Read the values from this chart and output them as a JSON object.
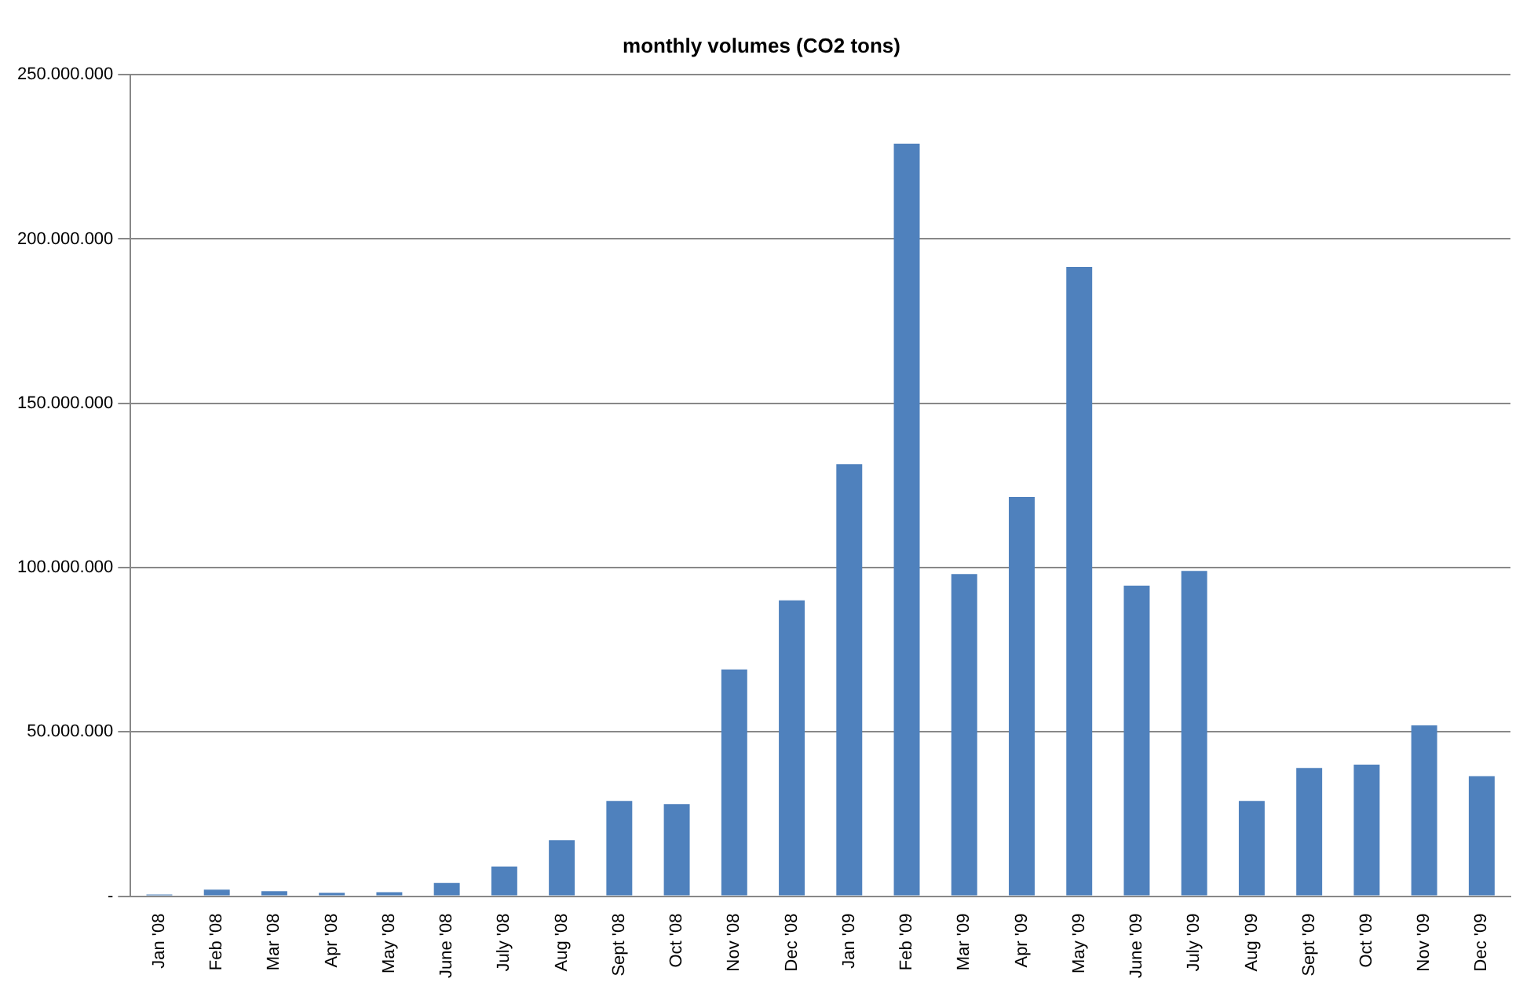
{
  "chart_data": {
    "type": "bar",
    "title": "monthly volumes (CO2 tons)",
    "categories": [
      "Jan '08",
      "Feb '08",
      "Mar '08",
      "Apr '08",
      "May '08",
      "June '08",
      "July '08",
      "Aug '08",
      "Sept '08",
      "Oct '08",
      "Nov '08",
      "Dec '08",
      "Jan '09",
      "Feb '09",
      "Mar '09",
      "Apr '09",
      "May '09",
      "June '09",
      "July '09",
      "Aug '09",
      "Sept '09",
      "Oct '09",
      "Nov '09",
      "Dec '09"
    ],
    "values": [
      500000,
      2000000,
      1500000,
      1000000,
      1200000,
      4000000,
      9000000,
      17000000,
      29000000,
      28000000,
      69000000,
      90000000,
      131500000,
      229000000,
      98000000,
      121500000,
      191500000,
      94500000,
      99000000,
      29000000,
      39000000,
      40000000,
      52000000,
      36500000
    ],
    "color": "#4f81bd",
    "ylim": [
      0,
      250000000
    ],
    "yticks": [
      {
        "value": 0,
        "label": "-"
      },
      {
        "value": 50000000,
        "label": "50.000.000"
      },
      {
        "value": 100000000,
        "label": "100.000.000"
      },
      {
        "value": 150000000,
        "label": "150.000.000"
      },
      {
        "value": 200000000,
        "label": "200.000.000"
      },
      {
        "value": 250000000,
        "label": "250.000.000"
      }
    ],
    "grid": "y",
    "legend": false
  }
}
